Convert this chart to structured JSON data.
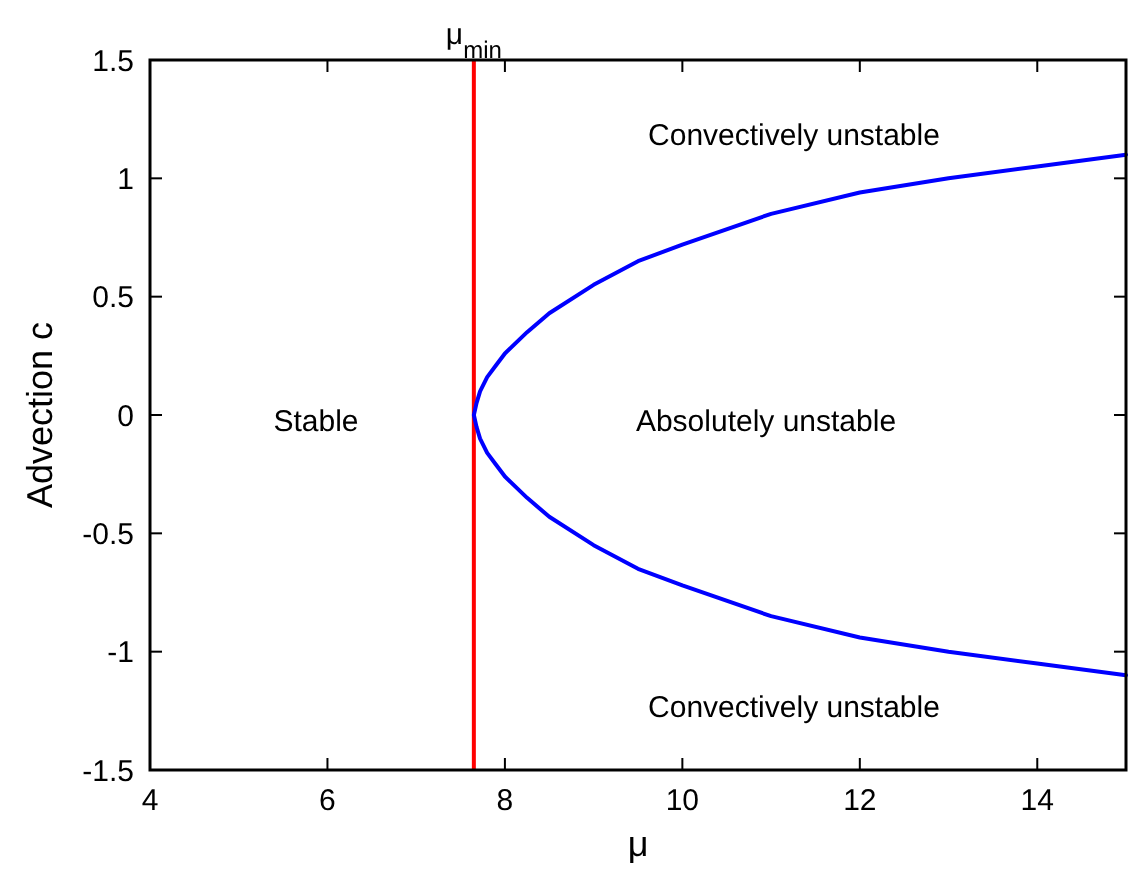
{
  "chart_data": {
    "type": "line",
    "xlabel": "μ",
    "ylabel": "Advection c",
    "xlim": [
      4,
      15
    ],
    "ylim": [
      -1.5,
      1.5
    ],
    "xticks": [
      4,
      6,
      8,
      10,
      12,
      14
    ],
    "yticks": [
      -1.5,
      -1,
      -0.5,
      0,
      0.5,
      1,
      1.5
    ],
    "grid": false,
    "marker": "none",
    "line_style": "solid",
    "series": [
      {
        "color": "#0000ff",
        "x": [
          15,
          14,
          13,
          12,
          11,
          10,
          9.5,
          9,
          8.5,
          8.25,
          8,
          7.9,
          7.8,
          7.72,
          7.68,
          7.65,
          7.68,
          7.72,
          7.8,
          7.9,
          8,
          8.25,
          8.5,
          9,
          9.5,
          10,
          11,
          12,
          13,
          14,
          15
        ],
        "values": [
          1.1,
          1.05,
          1.0,
          0.94,
          0.85,
          0.72,
          0.65,
          0.55,
          0.43,
          0.35,
          0.26,
          0.21,
          0.16,
          0.1,
          0.05,
          0,
          -0.05,
          -0.1,
          -0.16,
          -0.21,
          -0.26,
          -0.35,
          -0.43,
          -0.55,
          -0.65,
          -0.72,
          -0.85,
          -0.94,
          -1.0,
          -1.05,
          -1.1
        ]
      }
    ],
    "ref_lines": [
      {
        "axis": "x",
        "value": 7.65,
        "label": "μ$_{min}$",
        "color": "#ff0000",
        "line_style": "solid"
      }
    ],
    "annotations": [
      "Convectively unstable",
      "Stable",
      "Absolutely unstable",
      "Convectively unstable"
    ]
  }
}
